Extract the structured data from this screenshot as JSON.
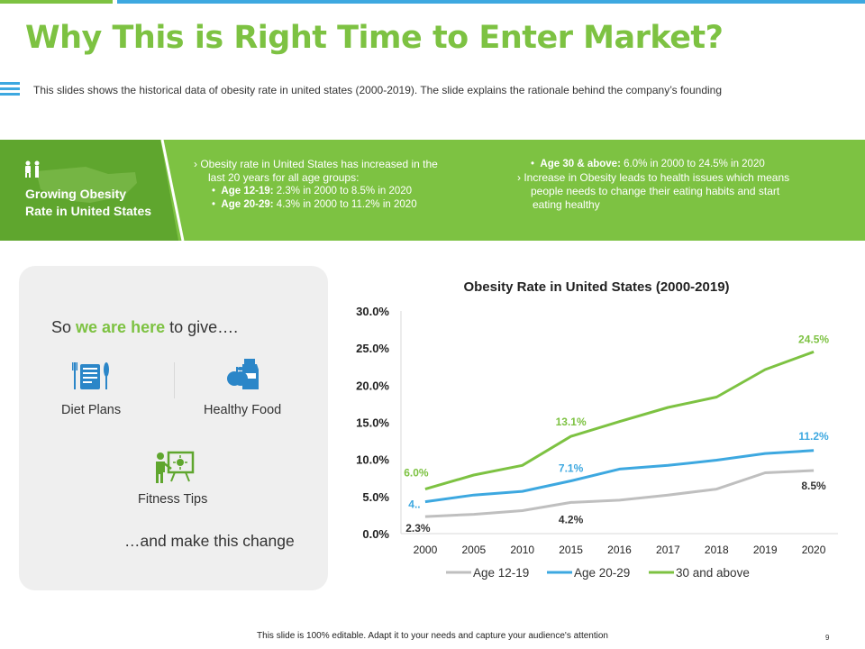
{
  "title": "Why This is Right Time to Enter Market?",
  "subtitle": "This slides shows the historical data of obesity rate in united states (2000-2019).  The slide explains the rationale  behind the company’s founding",
  "band": {
    "label_line1": "Growing Obesity",
    "label_line2": "Rate in United States",
    "col1_line1": "›  Obesity rate in United States has increased in the",
    "col1_line2": "last 20 years for all age groups:",
    "col1_b1_label": "Age 12-19:",
    "col1_b1_text": " 2.3% in 2000 to 8.5% in 2020",
    "col1_b2_label": "Age 20-29:",
    "col1_b2_text": " 4.3% in 2000 to 11.2% in 2020",
    "col2_b1_label": "Age 30 & above:",
    "col2_b1_text": " 6.0% in 2000 to 24.5% in 2020",
    "col2_line1": "›  Increase in Obesity leads to health issues which means",
    "col2_line2": "people needs to change their eating habits and start",
    "col2_line3": "eating healthy",
    "bullet_glyph": "•"
  },
  "panel": {
    "give_prefix": "So ",
    "give_highlight": "we are here",
    "give_suffix": " to give….",
    "items": [
      "Diet Plans",
      "Healthy Food",
      "Fitness Tips"
    ],
    "closing": "…and make this change"
  },
  "footer": "This slide is 100% editable. Adapt it to your needs and capture your audience's attention",
  "page_number": "9",
  "colors": {
    "green": "#7dc242",
    "blue": "#3da8e0",
    "gray": "#bfbfbf"
  },
  "chart_data": {
    "type": "line",
    "title": "Obesity Rate in United States (2000-2019)",
    "categories": [
      "2000",
      "2005",
      "2010",
      "2015",
      "2016",
      "2017",
      "2018",
      "2019",
      "2020"
    ],
    "ylim": [
      0,
      30
    ],
    "yticks": [
      "0.0%",
      "5.0%",
      "10.0%",
      "15.0%",
      "20.0%",
      "25.0%",
      "30.0%"
    ],
    "grid": false,
    "legend": "bottom",
    "series": [
      {
        "name": "Age 12-19",
        "color": "#bfbfbf",
        "values": [
          2.3,
          2.6,
          3.1,
          4.2,
          4.5,
          5.2,
          6.0,
          8.2,
          8.5
        ]
      },
      {
        "name": "Age 20-29",
        "color": "#3da8e0",
        "values": [
          4.3,
          5.2,
          5.7,
          7.1,
          8.7,
          9.2,
          9.9,
          10.8,
          11.2
        ]
      },
      {
        "name": "30 and above",
        "color": "#7dc242",
        "values": [
          6.0,
          7.9,
          9.2,
          13.1,
          15.1,
          17.0,
          18.4,
          22.1,
          24.5
        ]
      }
    ],
    "data_labels": [
      {
        "series": 2,
        "index": 0,
        "text": "6.0%"
      },
      {
        "series": 1,
        "index": 0,
        "text": "4.."
      },
      {
        "series": 0,
        "index": 0,
        "text": "2.3%"
      },
      {
        "series": 2,
        "index": 3,
        "text": "13.1%"
      },
      {
        "series": 1,
        "index": 3,
        "text": "7.1%"
      },
      {
        "series": 0,
        "index": 3,
        "text": "4.2%"
      },
      {
        "series": 2,
        "index": 8,
        "text": "24.5%"
      },
      {
        "series": 1,
        "index": 8,
        "text": "11.2%"
      },
      {
        "series": 0,
        "index": 8,
        "text": "8.5%"
      }
    ]
  }
}
